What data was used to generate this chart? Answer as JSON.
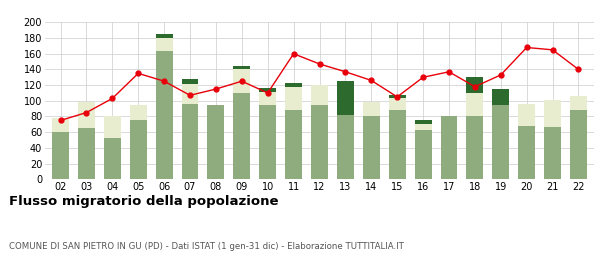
{
  "years": [
    "02",
    "03",
    "04",
    "05",
    "06",
    "07",
    "08",
    "09",
    "10",
    "11",
    "12",
    "13",
    "14",
    "15",
    "16",
    "17",
    "18",
    "19",
    "20",
    "21",
    "22"
  ],
  "iscritti_comuni": [
    60,
    65,
    53,
    76,
    163,
    96,
    95,
    110,
    95,
    88,
    95,
    82,
    80,
    88,
    63,
    80,
    80,
    95,
    68,
    66,
    88
  ],
  "iscritti_estero": [
    18,
    33,
    27,
    19,
    17,
    25,
    0,
    30,
    16,
    30,
    25,
    0,
    18,
    15,
    7,
    0,
    30,
    0,
    28,
    35,
    18
  ],
  "iscritti_altri": [
    0,
    0,
    0,
    0,
    5,
    7,
    0,
    5,
    5,
    5,
    0,
    43,
    0,
    5,
    5,
    0,
    20,
    20,
    0,
    0,
    0
  ],
  "cancellati": [
    75,
    85,
    103,
    135,
    125,
    107,
    115,
    125,
    110,
    160,
    147,
    137,
    126,
    105,
    130,
    137,
    118,
    133,
    168,
    165,
    140
  ],
  "bar_color_comuni": "#8fac7f",
  "bar_color_estero": "#e8edcf",
  "bar_color_altri": "#2d6a2d",
  "line_color": "#e8000a",
  "line_marker_color": "#e8000a",
  "background_color": "#ffffff",
  "grid_color": "#cccccc",
  "title": "Flusso migratorio della popolazione",
  "subtitle": "COMUNE DI SAN PIETRO IN GU (PD) - Dati ISTAT (1 gen-31 dic) - Elaborazione TUTTITALIA.IT",
  "ylim": [
    0,
    200
  ],
  "yticks": [
    0,
    20,
    40,
    60,
    80,
    100,
    120,
    140,
    160,
    180,
    200
  ]
}
